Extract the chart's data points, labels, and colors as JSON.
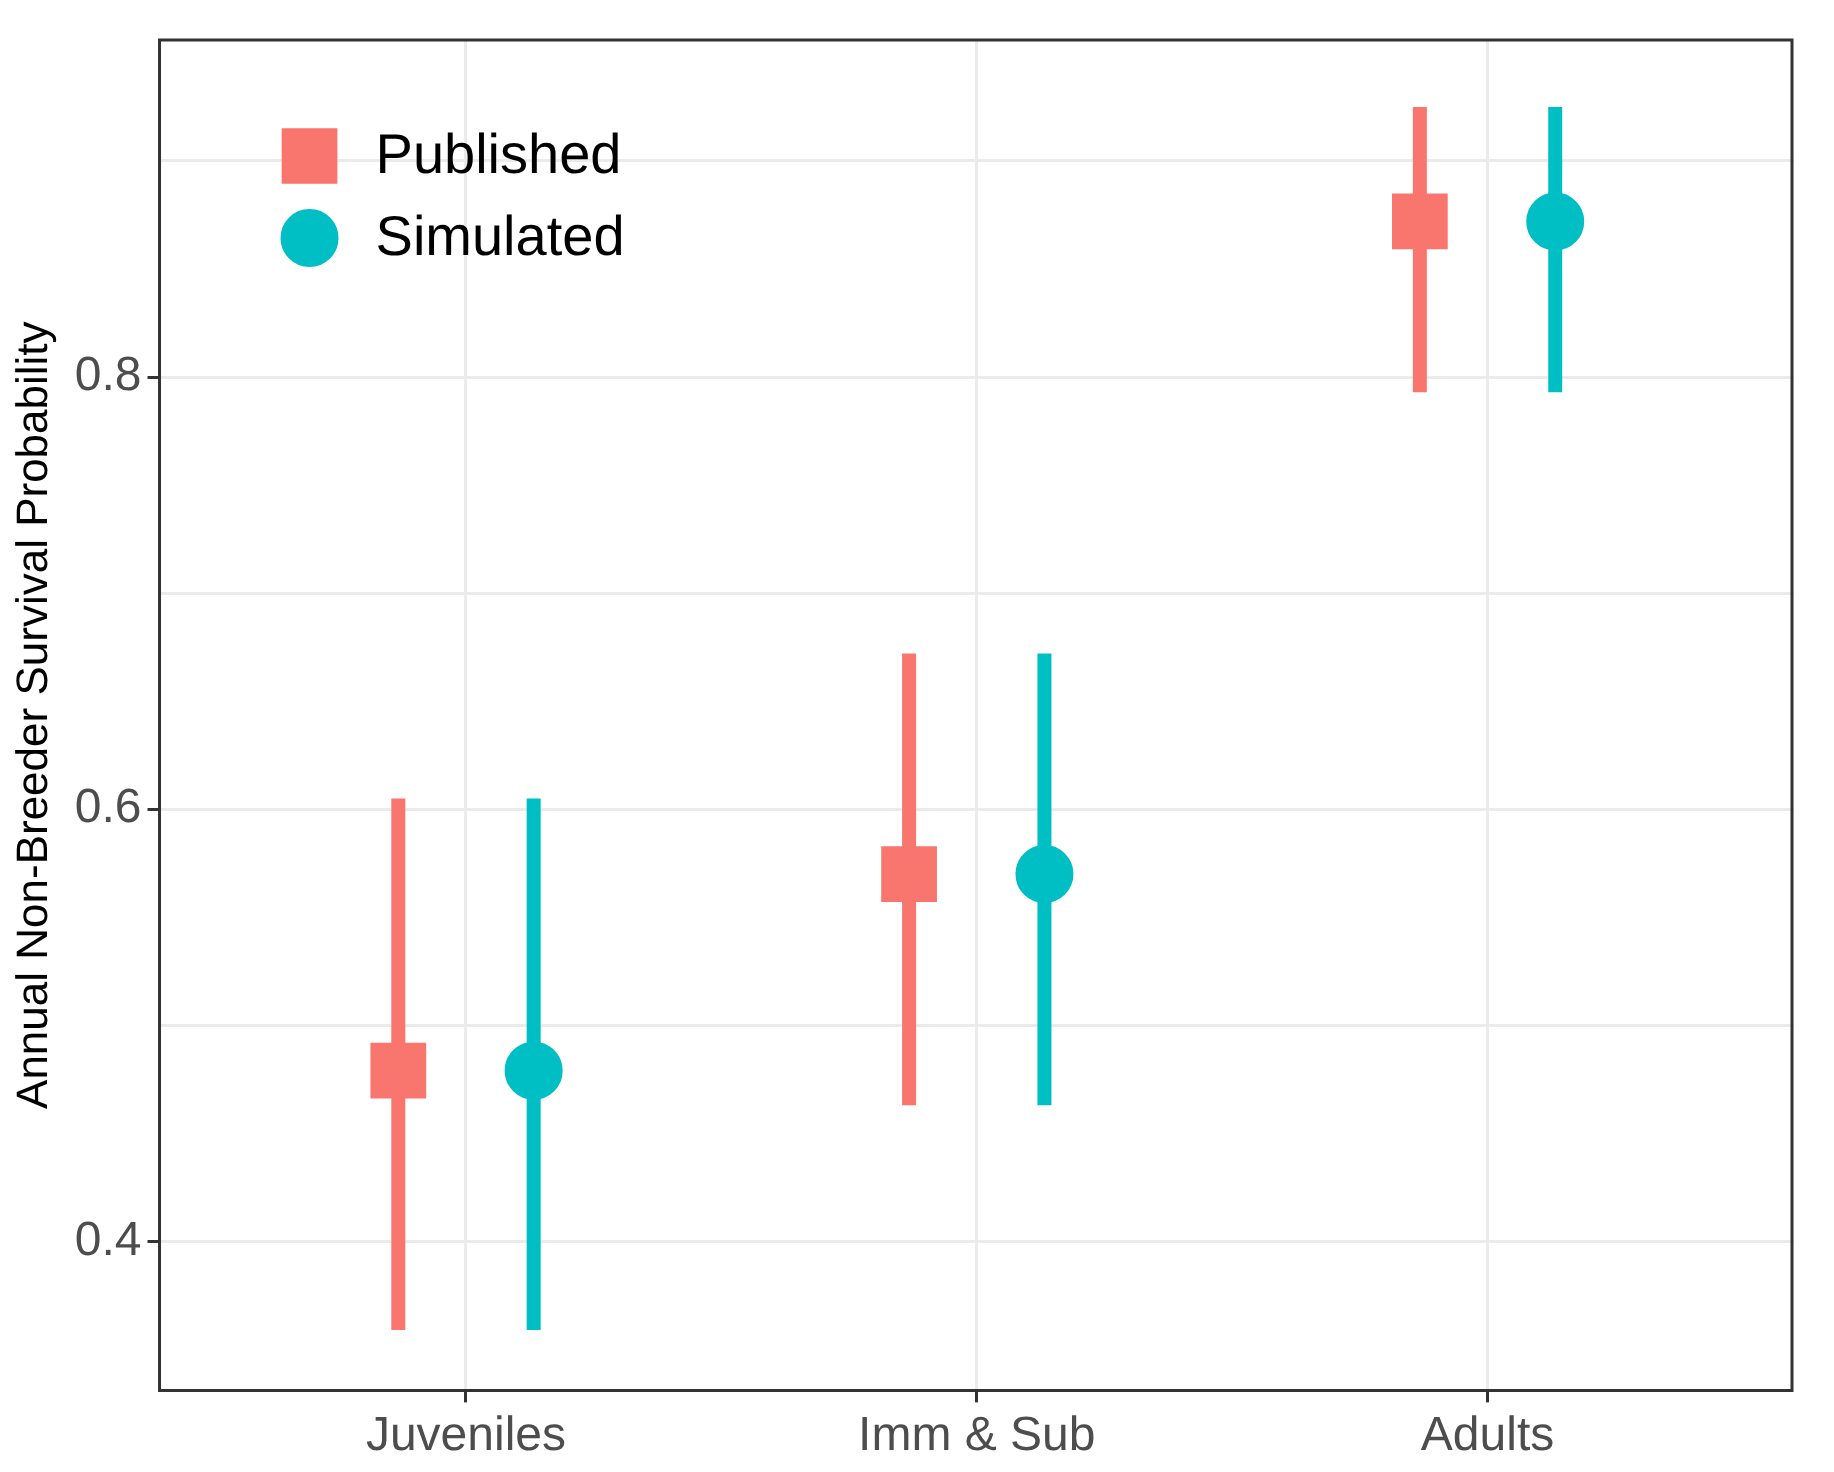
{
  "chart_data": {
    "type": "scatter",
    "ylabel": "Annual Non-Breeder Survival Probability",
    "categories": [
      "Juveniles",
      "Imm & Sub",
      "Adults"
    ],
    "series": [
      {
        "name": "Published",
        "color": "#f8766d",
        "marker": "square",
        "values": [
          0.479,
          0.57,
          0.872
        ],
        "errors": [
          [
            0.359,
            0.605
          ],
          [
            0.463,
            0.672
          ],
          [
            0.793,
            0.925
          ]
        ]
      },
      {
        "name": "Simulated",
        "color": "#00bfc4",
        "marker": "circle",
        "values": [
          0.479,
          0.57,
          0.872
        ],
        "errors": [
          [
            0.359,
            0.605
          ],
          [
            0.463,
            0.672
          ],
          [
            0.793,
            0.925
          ]
        ]
      }
    ],
    "ylim": [
      0.331,
      0.956
    ],
    "yticks": [
      0.4,
      {
        "value": 0.5,
        "label": null
      },
      0.6,
      {
        "value": 0.7,
        "label": null
      },
      0.8,
      {
        "value": 0.9,
        "label": null
      }
    ],
    "grid": true,
    "legend": "top left"
  }
}
